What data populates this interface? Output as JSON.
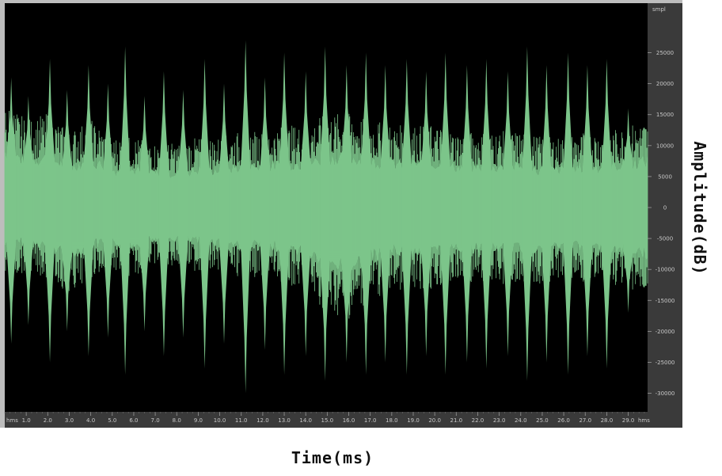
{
  "chart_data": {
    "type": "area",
    "xlabel": "Time(ms)",
    "ylabel": "Amplitude(dB)",
    "x_unit_left": "hms",
    "x_unit_right": "hms",
    "y_unit": "smpl",
    "x_ticks": [
      "1.0",
      "2.0",
      "3.0",
      "4.0",
      "5.0",
      "6.0",
      "7.0",
      "8.0",
      "9.0",
      "10.0",
      "11.0",
      "12.0",
      "13.0",
      "14.0",
      "15.0",
      "16.0",
      "17.0",
      "18.0",
      "19.0",
      "20.0",
      "21.0",
      "22.0",
      "23.0",
      "24.0",
      "25.0",
      "26.0",
      "27.0",
      "28.0",
      "29.0"
    ],
    "y_ticks": [
      "25000",
      "20000",
      "15000",
      "10000",
      "5000",
      "0",
      "-5000",
      "-10000",
      "-15000",
      "-20000",
      "-25000",
      "-30000"
    ],
    "xlim": [
      0.0,
      29.9
    ],
    "ylim": [
      -33000,
      33000
    ],
    "envelope": {
      "t": [
        0,
        1,
        2,
        3,
        4,
        5,
        6,
        7,
        8,
        9,
        10,
        11,
        12,
        13,
        14,
        15,
        16,
        17,
        18,
        19,
        20,
        21,
        22,
        23,
        24,
        25,
        26,
        27,
        28,
        29,
        29.9
      ],
      "upper": [
        9000,
        7500,
        8000,
        6500,
        7500,
        6000,
        6000,
        5500,
        5500,
        6000,
        6000,
        6500,
        6500,
        7000,
        7000,
        8000,
        8000,
        7500,
        7000,
        7000,
        7000,
        6500,
        6500,
        6500,
        6500,
        6000,
        6000,
        6500,
        6500,
        7000,
        7500
      ],
      "lower": [
        -6000,
        -5500,
        -6000,
        -7500,
        -6000,
        -5500,
        -6000,
        -5000,
        -5000,
        -5500,
        -5500,
        -6000,
        -6000,
        -6500,
        -7000,
        -9000,
        -9500,
        -8000,
        -7000,
        -7000,
        -7000,
        -6500,
        -6500,
        -6500,
        -6500,
        -6500,
        -6000,
        -6500,
        -6500,
        -7000,
        -7500
      ]
    },
    "peaks": {
      "t": [
        0.3,
        1.1,
        2.1,
        2.9,
        3.9,
        4.8,
        5.6,
        6.5,
        7.4,
        8.3,
        9.3,
        10.2,
        11.2,
        12.1,
        13.0,
        14.0,
        14.9,
        15.9,
        16.8,
        17.7,
        18.7,
        19.6,
        20.5,
        21.5,
        22.4,
        23.4,
        24.3,
        25.2,
        26.2,
        27.1,
        28.0,
        29.0
      ],
      "upper": [
        21000,
        18000,
        24000,
        19000,
        23000,
        20000,
        26000,
        18000,
        22000,
        19000,
        24000,
        20000,
        27000,
        21000,
        25000,
        22000,
        26000,
        23000,
        25000,
        23000,
        24000,
        22000,
        25000,
        23000,
        24000,
        22000,
        26000,
        23000,
        25000,
        23000,
        24000,
        16000
      ],
      "lower": [
        -22000,
        -19000,
        -25000,
        -20000,
        -24000,
        -21000,
        -27000,
        -20000,
        -24000,
        -21000,
        -26000,
        -22000,
        -30000,
        -23000,
        -27000,
        -24000,
        -28000,
        -25000,
        -27000,
        -25000,
        -27000,
        -24000,
        -27000,
        -25000,
        -26000,
        -24000,
        -28000,
        -25000,
        -27000,
        -24000,
        -26000,
        -17000
      ]
    },
    "colors": {
      "background": "#000000",
      "waveform": "#7cc58a",
      "frame": "#2a2a2a",
      "axis_panel": "#3a3a3a",
      "tick_text": "#c8c8c8"
    },
    "grid": false
  }
}
